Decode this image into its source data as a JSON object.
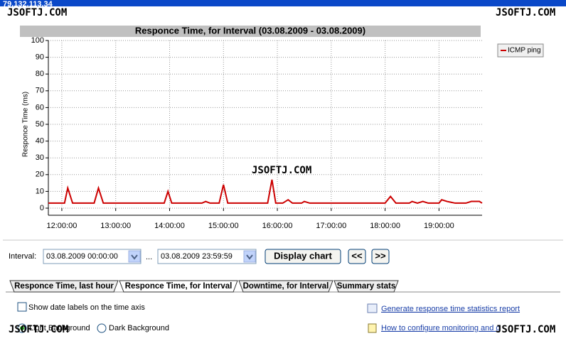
{
  "window_title": "79.132.113.34",
  "watermark": "JSOFTJ.COM",
  "chart_data": {
    "type": "line",
    "title": "Responce Time, for Interval (03.08.2009 - 03.08.2009)",
    "y_label": "Responce Time (ms)",
    "x": [
      11.75,
      12.05,
      12.11,
      12.2,
      12.6,
      12.68,
      12.77,
      13.9,
      13.97,
      14.04,
      14.6,
      14.67,
      14.75,
      14.92,
      15.0,
      15.08,
      15.82,
      15.9,
      15.97,
      16.1,
      16.2,
      16.28,
      16.45,
      16.5,
      16.6,
      18.0,
      18.1,
      18.2,
      18.45,
      18.5,
      18.6,
      18.7,
      18.8,
      19.0,
      19.05,
      19.15,
      19.3,
      19.5,
      19.6,
      19.75,
      19.8
    ],
    "series": [
      {
        "name": "ICMP ping",
        "color": "#cc0000",
        "values": [
          3,
          3,
          12,
          3,
          3,
          12,
          3,
          3,
          10,
          3,
          3,
          4,
          3,
          3,
          14,
          3,
          3,
          17,
          3,
          3,
          5,
          3,
          3,
          4,
          3,
          3,
          7,
          3,
          3,
          4,
          3,
          4,
          3,
          3,
          5,
          4,
          3,
          3,
          4,
          4,
          3
        ]
      }
    ],
    "xlim": [
      11.75,
      19.8
    ],
    "ylim": [
      0,
      100
    ],
    "xticks": [
      {
        "value": 12,
        "label": "12:00:00"
      },
      {
        "value": 13,
        "label": "13:00:00"
      },
      {
        "value": 14,
        "label": "14:00:00"
      },
      {
        "value": 15,
        "label": "15:00:00"
      },
      {
        "value": 16,
        "label": "16:00:00"
      },
      {
        "value": 17,
        "label": "17:00:00"
      },
      {
        "value": 18,
        "label": "18:00:00"
      },
      {
        "value": 19,
        "label": "19:00:00"
      }
    ],
    "yticks": [
      0,
      10,
      20,
      30,
      40,
      50,
      60,
      70,
      80,
      90,
      100
    ],
    "grid": true,
    "legend": "upper right"
  },
  "interval": {
    "label": "Interval:",
    "from": "03.08.2009 00:00:00",
    "separator": "...",
    "to": "03.08.2009 23:59:59"
  },
  "buttons": {
    "display": "Display chart",
    "prev": "<<",
    "next": ">>"
  },
  "tabs": [
    "Responce Time, last hour",
    "Responce Time, for Interval",
    "Downtime, for Interval",
    "Summary stats"
  ],
  "active_tab": 1,
  "options": {
    "checkbox": "Show date labels on the time axis",
    "radio_light": "Light Background",
    "radio_dark": "Dark Background"
  },
  "links": [
    "Generate response time statistics report",
    "How to configure monitoring and q"
  ]
}
